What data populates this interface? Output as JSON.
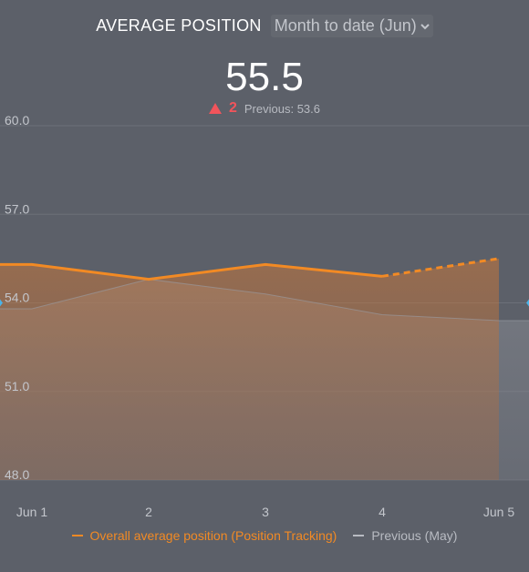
{
  "header": {
    "title": "AVERAGE POSITION",
    "range_label": "Month to date (Jun)"
  },
  "summary": {
    "value": "55.5",
    "delta": "2",
    "previous": "Previous: 53.6"
  },
  "colors": {
    "current": "#f28a24",
    "previous": "#b8bbc2",
    "delta_up": "#f2545b",
    "background": "#5c6069"
  },
  "chart_data": {
    "type": "area",
    "x": [
      "Jun 1",
      "2",
      "3",
      "4",
      "Jun 5"
    ],
    "ylim": [
      48.0,
      60.0
    ],
    "yticks": [
      "60.0",
      "57.0",
      "54.0",
      "51.0",
      "48.0"
    ],
    "grid": true,
    "legend_position": "bottom",
    "series": [
      {
        "name": "Overall average position (Position Tracking)",
        "values": [
          55.3,
          54.8,
          55.3,
          54.9,
          55.5
        ],
        "projected_from_index": 3
      },
      {
        "name": "Previous (May)",
        "values": [
          53.8,
          54.8,
          54.3,
          53.6,
          53.4
        ]
      }
    ]
  }
}
